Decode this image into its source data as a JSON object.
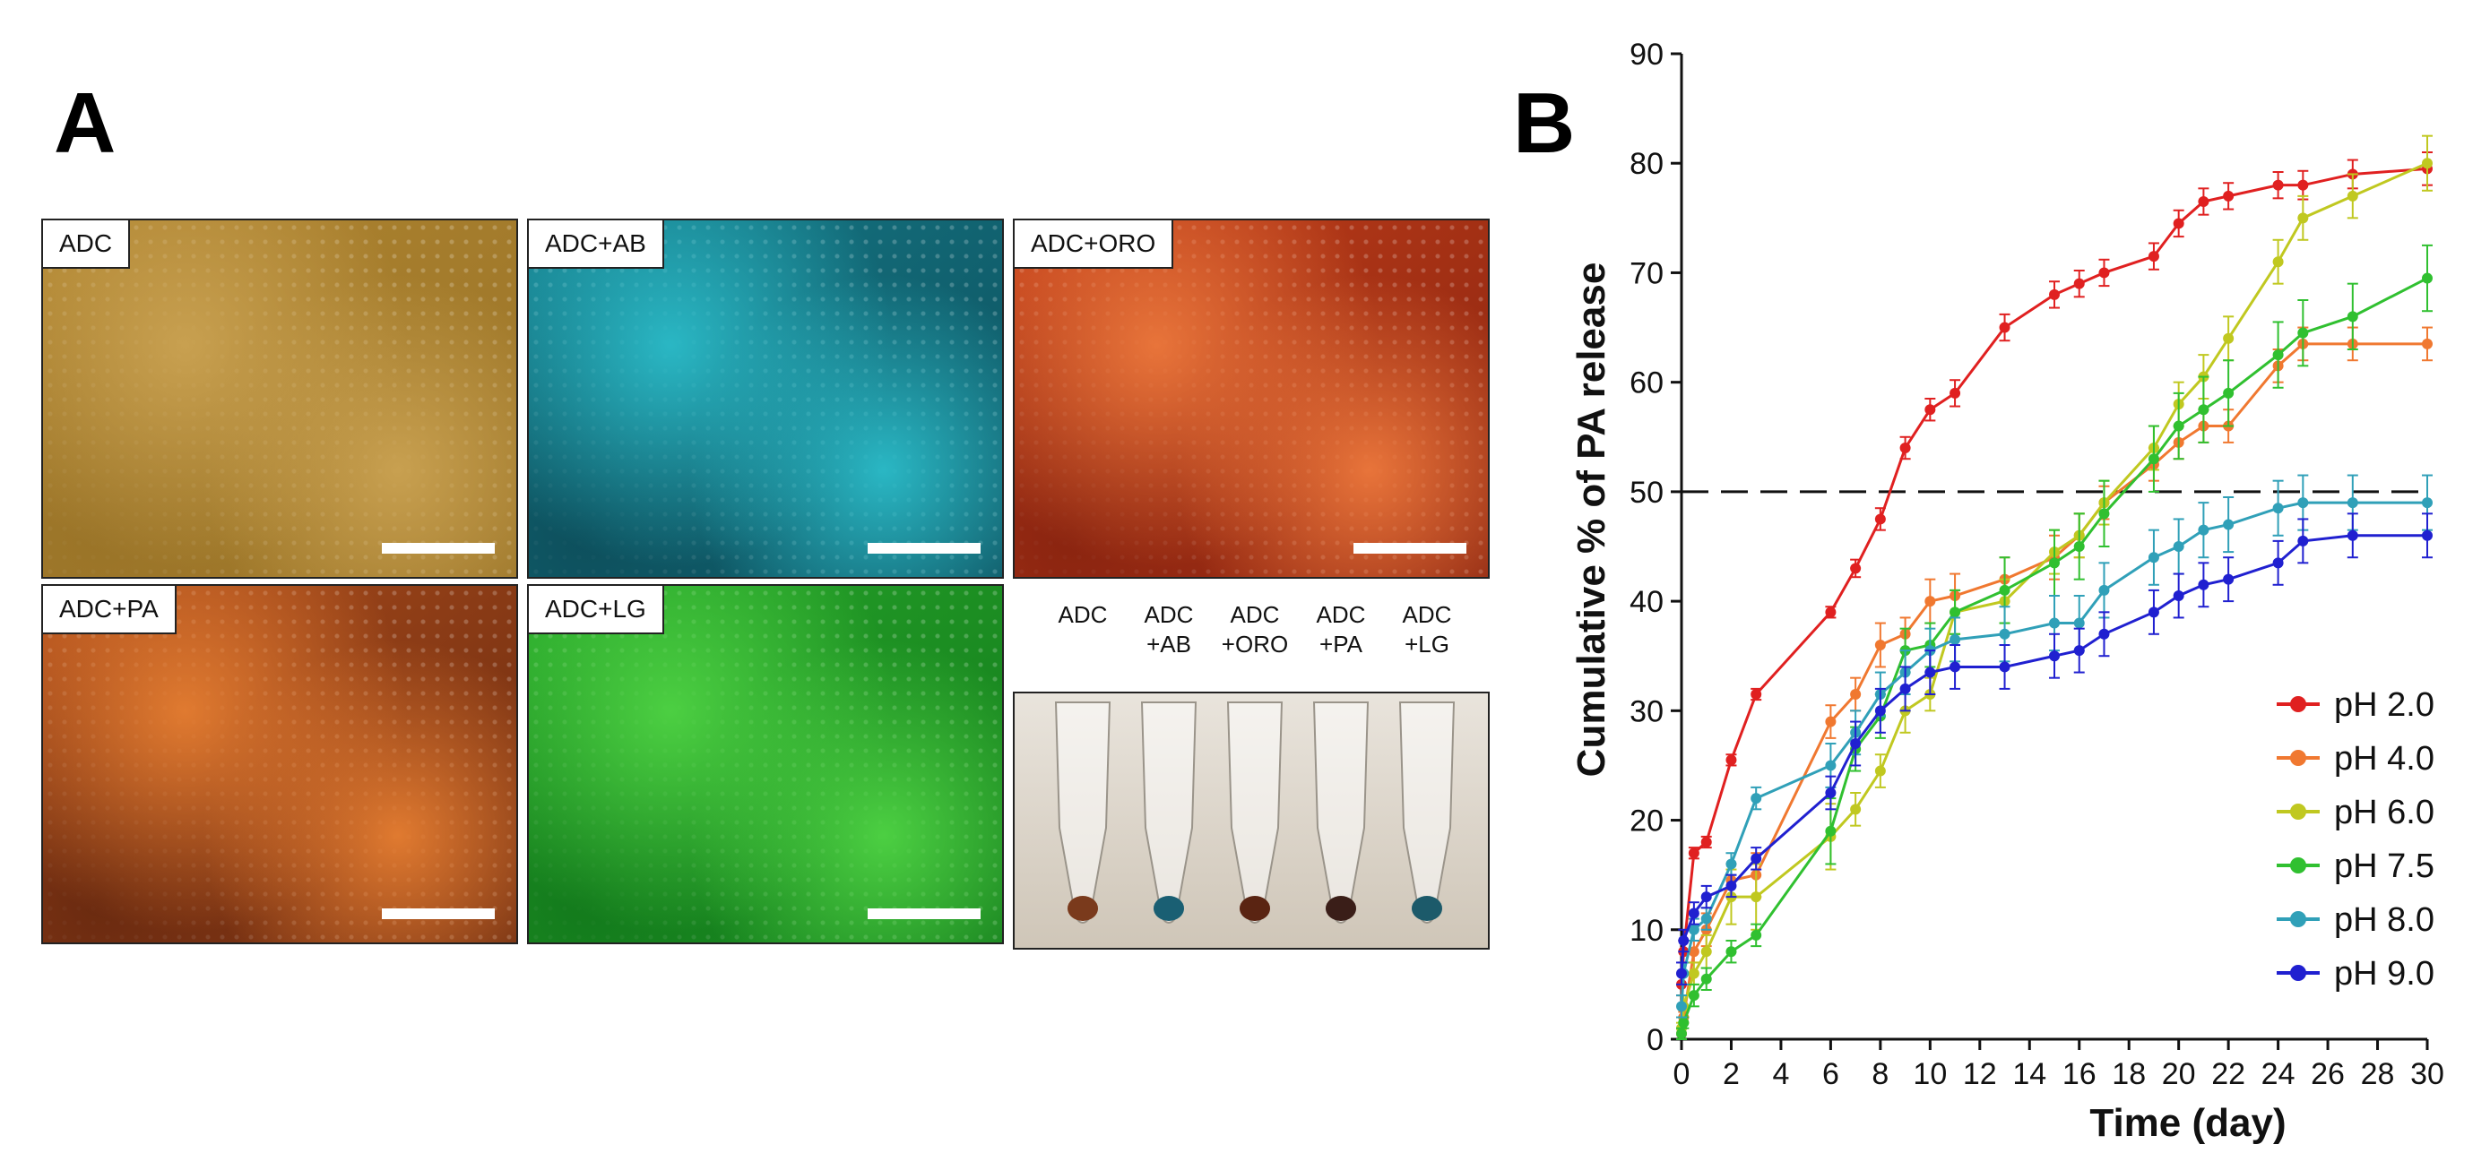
{
  "panel_a": {
    "letter": "A",
    "images": [
      {
        "label": "ADC",
        "colors": [
          "#c8a050",
          "#b08530",
          "#9a7428"
        ]
      },
      {
        "label": "ADC+AB",
        "colors": [
          "#2ab7c4",
          "#167c8a",
          "#0d4f5c"
        ]
      },
      {
        "label": "ADC+ORO",
        "colors": [
          "#e8743a",
          "#c4401a",
          "#8a2410"
        ]
      },
      {
        "label": "ADC+PA",
        "colors": [
          "#e07a30",
          "#b04f1c",
          "#6a2a10"
        ]
      },
      {
        "label": "ADC+LG",
        "colors": [
          "#4ccf42",
          "#28a82a",
          "#137a1c"
        ]
      }
    ],
    "tubes": {
      "labels": [
        "ADC",
        "ADC\n+AB",
        "ADC\n+ORO",
        "ADC\n+PA",
        "ADC\n+LG"
      ],
      "pellet_colors": [
        "#7a3a1c",
        "#1a5f73",
        "#5a2412",
        "#3a1e18",
        "#1c5a6a"
      ]
    }
  },
  "panel_b": {
    "letter": "B"
  },
  "chart_data": {
    "type": "line",
    "xlabel": "Time (day)",
    "ylabel": "Cumulative % of PA release",
    "xlim": [
      0,
      30
    ],
    "ylim": [
      0,
      90
    ],
    "xticks": [
      0,
      2,
      4,
      6,
      8,
      10,
      12,
      14,
      16,
      18,
      20,
      22,
      24,
      26,
      28,
      30
    ],
    "yticks": [
      0,
      10,
      20,
      30,
      40,
      50,
      60,
      70,
      80,
      90
    ],
    "reference_line": {
      "y": 50,
      "style": "dashed"
    },
    "legend_position": "right",
    "series": [
      {
        "name": "pH 2.0",
        "color": "#e02020",
        "x": [
          0,
          0.083,
          0.5,
          1,
          2,
          3,
          6,
          7,
          8,
          9,
          10,
          11,
          13,
          15,
          16,
          17,
          19,
          20,
          21,
          22,
          24,
          25,
          27,
          30
        ],
        "y": [
          5,
          8,
          17,
          18,
          25.5,
          31.5,
          39,
          43,
          47.5,
          54,
          57.5,
          59,
          65,
          68,
          69,
          70,
          71.5,
          74.5,
          76.5,
          77,
          78,
          78,
          79,
          79.5
        ],
        "err": [
          1,
          1,
          0.5,
          0.5,
          0.5,
          0.5,
          0.5,
          0.8,
          1,
          1,
          1,
          1.2,
          1.2,
          1.2,
          1.2,
          1.2,
          1.2,
          1.2,
          1.2,
          1.2,
          1.2,
          1.3,
          1.3,
          1.5
        ]
      },
      {
        "name": "pH 4.0",
        "color": "#f07830",
        "x": [
          0,
          0.083,
          0.5,
          1,
          2,
          3,
          6,
          7,
          8,
          9,
          10,
          11,
          13,
          15,
          16,
          17,
          19,
          20,
          21,
          22,
          24,
          25,
          27,
          30
        ],
        "y": [
          0.5,
          2,
          8,
          10,
          14.5,
          15,
          29,
          31.5,
          36,
          37,
          40,
          40.5,
          42,
          44,
          46,
          49,
          52.5,
          54.5,
          56,
          56,
          61.5,
          63.5,
          63.5,
          63.5
        ],
        "err": [
          0.5,
          0.5,
          1,
          1.5,
          1.5,
          2,
          1.5,
          1.5,
          2,
          1.5,
          2,
          2,
          2,
          2,
          2,
          1.5,
          1.5,
          1.5,
          1.5,
          1.5,
          1.5,
          1.5,
          1.5,
          1.5
        ]
      },
      {
        "name": "pH 6.0",
        "color": "#c0c820",
        "x": [
          0,
          0.083,
          0.5,
          1,
          2,
          3,
          6,
          7,
          8,
          9,
          10,
          11,
          13,
          15,
          16,
          17,
          19,
          20,
          21,
          22,
          24,
          25,
          27,
          30
        ],
        "y": [
          1,
          3,
          6,
          8,
          13,
          13,
          18.5,
          21,
          24.5,
          30,
          31.5,
          39,
          40,
          44.5,
          46,
          49,
          54,
          58,
          60.5,
          64,
          71,
          75,
          77,
          80
        ],
        "err": [
          0.5,
          1,
          1,
          1.5,
          2.5,
          3,
          3,
          1.5,
          1.5,
          2,
          1.5,
          2,
          2,
          2,
          2,
          2,
          2,
          2,
          2,
          2,
          2,
          2,
          2,
          2.5
        ]
      },
      {
        "name": "pH 7.5",
        "color": "#30c030",
        "x": [
          0,
          0.083,
          0.5,
          1,
          2,
          3,
          6,
          7,
          8,
          9,
          10,
          11,
          13,
          15,
          16,
          17,
          19,
          20,
          21,
          22,
          24,
          25,
          27,
          30
        ],
        "y": [
          0.5,
          1.5,
          4,
          5.5,
          8,
          9.5,
          19,
          26.5,
          29.5,
          35.5,
          36,
          39,
          41,
          43.5,
          45,
          48,
          53,
          56,
          57.5,
          59,
          62.5,
          64.5,
          66,
          69.5
        ],
        "err": [
          0.5,
          0.5,
          1,
          1,
          1,
          1,
          3,
          2,
          2,
          2,
          2,
          2,
          3,
          3,
          3,
          3,
          3,
          3,
          3,
          3,
          3,
          3,
          3,
          3
        ]
      },
      {
        "name": "pH 8.0",
        "color": "#30a0b8",
        "x": [
          0,
          0.083,
          0.5,
          1,
          2,
          3,
          6,
          7,
          8,
          9,
          10,
          11,
          13,
          15,
          16,
          17,
          19,
          20,
          21,
          22,
          24,
          25,
          27,
          30
        ],
        "y": [
          3,
          6,
          10,
          11,
          16,
          22,
          25,
          28,
          31.5,
          33.5,
          35.5,
          36.5,
          37,
          38,
          38,
          41,
          44,
          45,
          46.5,
          47,
          48.5,
          49,
          49,
          49
        ],
        "err": [
          1,
          1,
          1,
          1,
          1,
          1,
          2,
          2,
          2,
          2,
          2,
          2,
          2.5,
          2.5,
          2.5,
          2.5,
          2.5,
          2.5,
          2.5,
          2.5,
          2.5,
          2.5,
          2.5,
          2.5
        ]
      },
      {
        "name": "pH 9.0",
        "color": "#2020d0",
        "x": [
          0,
          0.083,
          0.5,
          1,
          2,
          3,
          6,
          7,
          8,
          9,
          10,
          11,
          13,
          15,
          16,
          17,
          19,
          20,
          21,
          22,
          24,
          25,
          27,
          30
        ],
        "y": [
          6,
          9,
          11.5,
          13,
          14,
          16.5,
          22.5,
          27,
          30,
          32,
          33.5,
          34,
          34,
          35,
          35.5,
          37,
          39,
          40.5,
          41.5,
          42,
          43.5,
          45.5,
          46,
          46
        ],
        "err": [
          1,
          1,
          1,
          1,
          1,
          1,
          1.5,
          2,
          2,
          2,
          2,
          2,
          2,
          2,
          2,
          2,
          2,
          2,
          2,
          2,
          2,
          2,
          2,
          2
        ]
      }
    ]
  }
}
